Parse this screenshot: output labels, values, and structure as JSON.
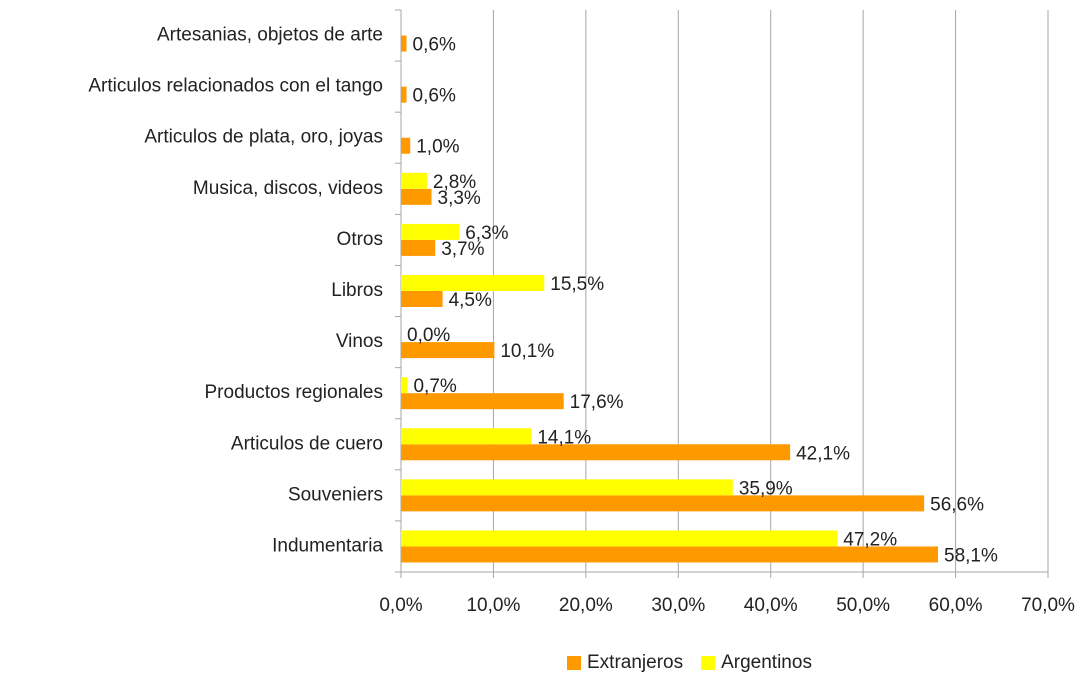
{
  "chart_data": {
    "type": "bar",
    "orientation": "horizontal",
    "categories": [
      "Artesanias, objetos de arte",
      "Articulos relacionados con el tango",
      "Articulos de plata, oro, joyas",
      "Musica, discos, videos",
      "Otros",
      "Libros",
      "Vinos",
      "Productos regionales",
      "Articulos de cuero",
      "Souveniers",
      "Indumentaria"
    ],
    "series": [
      {
        "name": "Extranjeros",
        "color": "#ff9900",
        "values": [
          0.6,
          0.6,
          1.0,
          3.3,
          3.7,
          4.5,
          10.1,
          17.6,
          42.1,
          56.6,
          58.1
        ],
        "value_labels": [
          "0,6%",
          "0,6%",
          "1,0%",
          "3,3%",
          "3,7%",
          "4,5%",
          "10,1%",
          "17,6%",
          "42,1%",
          "56,6%",
          "58,1%"
        ]
      },
      {
        "name": "Argentinos",
        "color": "#ffff00",
        "values": [
          null,
          null,
          null,
          2.8,
          6.3,
          15.5,
          0.0,
          0.7,
          14.1,
          35.9,
          47.2
        ],
        "value_labels": [
          null,
          null,
          null,
          "2,8%",
          "6,3%",
          "15,5%",
          "0,0%",
          "0,7%",
          "14,1%",
          "35,9%",
          "47,2%"
        ]
      }
    ],
    "xlim": [
      0,
      70
    ],
    "xticks": [
      {
        "value": 0,
        "label": "0,0%"
      },
      {
        "value": 10,
        "label": "10,0%"
      },
      {
        "value": 20,
        "label": "20,0%"
      },
      {
        "value": 30,
        "label": "30,0%"
      },
      {
        "value": 40,
        "label": "40,0%"
      },
      {
        "value": 50,
        "label": "50,0%"
      },
      {
        "value": 60,
        "label": "60,0%"
      },
      {
        "value": 70,
        "label": "70,0%"
      }
    ],
    "grid": true,
    "legend": "bottom"
  }
}
